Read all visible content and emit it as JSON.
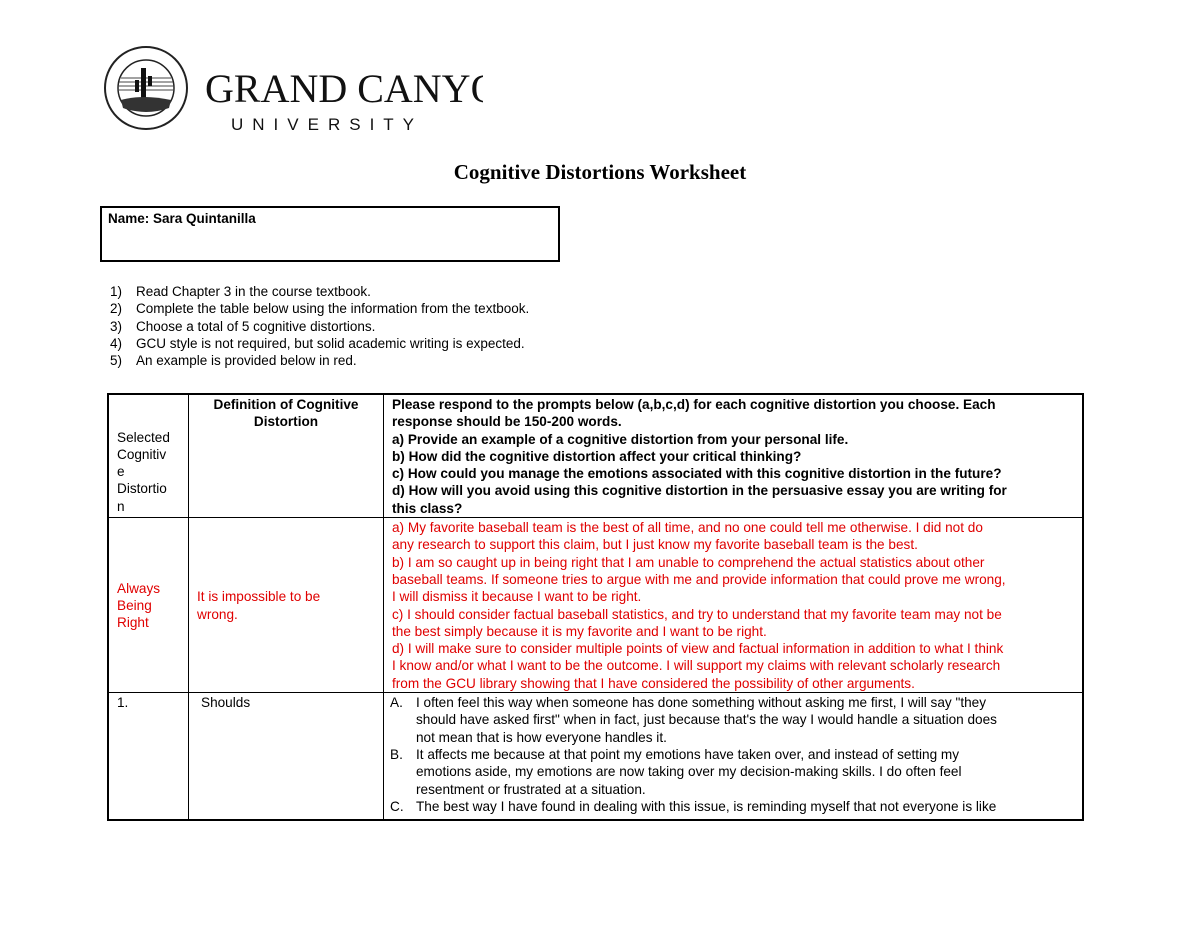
{
  "logo": {
    "seal_text": "GRAND CANYON UNIVERSITY ARIZONA 1949",
    "name_line1": "GRAND CANYON",
    "name_line2": "UNIVERSITY",
    "tm": "™"
  },
  "title": "Cognitive Distortions Worksheet",
  "name_label": "Name: Sara Quintanilla",
  "instructions": [
    {
      "n": "1)",
      "text": "Read Chapter 3 in the course textbook."
    },
    {
      "n": "2)",
      "text": "Complete the table below using the information from the textbook."
    },
    {
      "n": "3)",
      "text": "Choose a total of 5 cognitive distortions."
    },
    {
      "n": "4)",
      "text": "GCU style is not required, but solid academic writing is expected."
    },
    {
      "n": "5)",
      "text": "An example is provided below in red."
    }
  ],
  "table": {
    "header": {
      "col1": [
        "Selected",
        "Cognitiv",
        "e",
        "Distortio",
        "n"
      ],
      "col2": [
        "Definition of Cognitive",
        "Distortion"
      ],
      "col3": [
        "Please respond to the prompts below (a,b,c,d) for each cognitive distortion you choose. Each",
        "response should be 150-200 words.",
        "a) Provide an example of a cognitive distortion from your personal life.",
        "b) How did the cognitive distortion affect your critical thinking?",
        "c) How could you manage the emotions associated with this cognitive distortion in the future?",
        "d) How will you avoid using this cognitive distortion in the persuasive essay you are writing for",
        "this class?"
      ]
    },
    "example": {
      "col1": [
        "Always",
        "Being",
        "Right"
      ],
      "col2": [
        "It is impossible to be",
        "wrong."
      ],
      "col3": [
        "a) My favorite baseball team is the best of all time, and no one could tell me otherwise. I did not do",
        "any research to support this claim, but I just know my favorite baseball team is the best.",
        "b) I am so caught up in being right that I am unable to comprehend the actual statistics about other",
        "baseball teams. If someone tries to argue with me and provide information that could prove me wrong,",
        "I will dismiss it because I want to be right.",
        "c) I should consider factual baseball statistics, and try to understand that my favorite team may not be",
        "the best simply because it is my favorite and I want to be right.",
        "d) I will make sure to consider multiple points of view and factual information in addition to what I think",
        "I know and/or what I want to be the outcome. I will support my claims with relevant scholarly research",
        "from the GCU library showing that I have considered the possibility of other arguments."
      ]
    },
    "row1": {
      "col1": "1.",
      "col2": "Shoulds",
      "col3": [
        {
          "m": "A.",
          "lines": [
            "I often feel this way when someone has done something without asking me first, I will say \"they",
            "should have asked first\" when in fact, just because that's the way I would handle a situation does",
            "not mean that is how everyone handles it."
          ]
        },
        {
          "m": "B.",
          "lines": [
            "It affects me because at that point my emotions have taken over, and instead of setting my",
            "emotions aside, my emotions are now taking over my decision-making skills. I do often feel",
            "resentment or frustrated at a situation."
          ]
        },
        {
          "m": "C.",
          "lines": [
            "The best way I have found in dealing with this issue, is reminding myself that not everyone is like"
          ]
        }
      ]
    }
  }
}
